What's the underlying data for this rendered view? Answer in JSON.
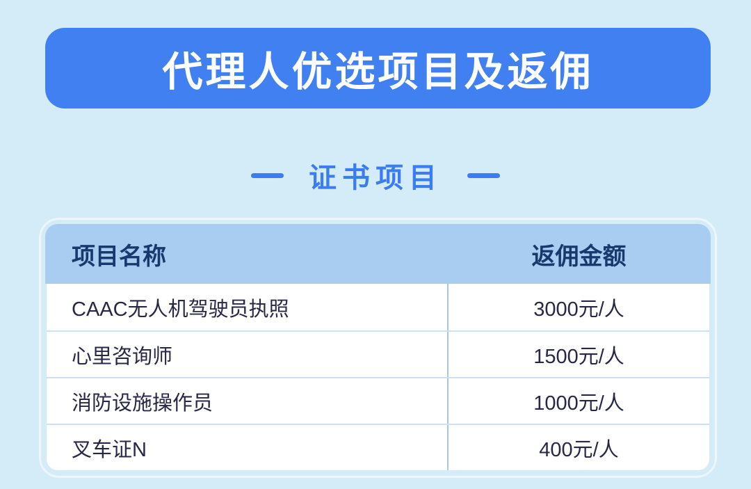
{
  "colors": {
    "page_background": "#d4ecf8",
    "banner_background": "#4080f0",
    "banner_text": "#ffffff",
    "section_accent": "#3b7df0",
    "table_header_background": "#a9cdf0",
    "table_header_text": "#17396d",
    "table_cell_text": "#272747",
    "column_divider": "#a5c8e6",
    "row_divider": "#cbe1f5"
  },
  "banner": {
    "title": "代理人优选项目及返佣"
  },
  "section": {
    "title": "证书项目"
  },
  "table": {
    "header": {
      "col_name": "项目名称",
      "col_amount": "返佣金额"
    },
    "rows": [
      {
        "name": "CAAC无人机驾驶员执照",
        "amount": "3000元/人"
      },
      {
        "name": "心里咨询师",
        "amount": "1500元/人"
      },
      {
        "name": "消防设施操作员",
        "amount": "1000元/人"
      },
      {
        "name": "叉车证N",
        "amount": "400元/人"
      }
    ]
  }
}
